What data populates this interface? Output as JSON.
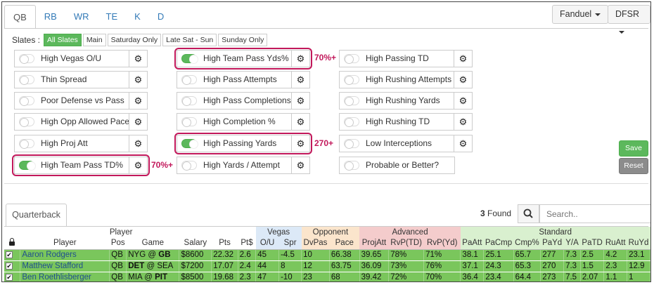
{
  "position_tabs": [
    "QB",
    "RB",
    "WR",
    "TE",
    "K",
    "D"
  ],
  "active_position": "QB",
  "site_dropdown": "Fanduel",
  "source_dropdown": "DFSR",
  "slates": {
    "label": "Slates :",
    "buttons": [
      "All Slates",
      "Main",
      "Saturday Only",
      "Late Sat - Sun",
      "Sunday Only"
    ],
    "active": "All Slates"
  },
  "filters": {
    "col1": [
      {
        "label": "High Vegas O/U",
        "on": false
      },
      {
        "label": "Thin Spread",
        "on": false
      },
      {
        "label": "Poor Defense vs Pass",
        "on": false
      },
      {
        "label": "High Opp Allowed Pace",
        "on": false
      },
      {
        "label": "High Proj Att",
        "on": false
      },
      {
        "label": "High Team Pass TD%",
        "on": true
      }
    ],
    "col2": [
      {
        "label": "High Team Pass Yds%",
        "on": true
      },
      {
        "label": "High Pass Attempts",
        "on": false
      },
      {
        "label": "High Pass Completions",
        "on": false
      },
      {
        "label": "High Completion %",
        "on": false
      },
      {
        "label": "High Passing Yards",
        "on": true
      },
      {
        "label": "High Yards / Attempt",
        "on": false
      }
    ],
    "col3": [
      {
        "label": "High Passing TD",
        "on": false
      },
      {
        "label": "High Rushing Attempts",
        "on": false
      },
      {
        "label": "High Rushing Yards",
        "on": false
      },
      {
        "label": "High Rushing TD",
        "on": false
      },
      {
        "label": "Low Interceptions",
        "on": false
      },
      {
        "label": "Probable or Better?",
        "on": false
      }
    ]
  },
  "annotations": {
    "pass_yds_pct": "70%+",
    "passing_yards": "270+",
    "pass_td_pct": "70%+"
  },
  "buttons": {
    "save": "Save",
    "reset": "Reset"
  },
  "panel_tab": "Quarterback",
  "found": {
    "count": "3",
    "label": "Found"
  },
  "search": {
    "placeholder": "Search.."
  },
  "table": {
    "groups": [
      "Player",
      "Vegas",
      "Opponent",
      "Advanced",
      "Standard"
    ],
    "columns": [
      "Player",
      "Pos",
      "Game",
      "Salary",
      "Pts",
      "Pt$",
      "O/U",
      "Spr",
      "DvPas",
      "Pace",
      "ProjAtt",
      "RvP(TD)",
      "RvP(Yd)",
      "PaAtt",
      "PaCmp",
      "Cmp%",
      "PaYd",
      "Y/A",
      "PaTD",
      "RuAtt",
      "RuYd"
    ],
    "rows": [
      {
        "player": "Aaron Rodgers",
        "pos": "QB",
        "game_a": "NYG @ ",
        "game_b": "GB",
        "salary": "$8600",
        "pts": "22.32",
        "ptd": "2.6",
        "ou": "45",
        "spr": "-4.5",
        "dvpas": "10",
        "pace": "66.38",
        "projatt": "39.65",
        "rvptd": "78%",
        "rvpyd": "71%",
        "paatt": "38.1",
        "pacmp": "25.1",
        "cmp": "65.7",
        "payd": "277",
        "ya": "7.3",
        "patd": "2.5",
        "ruatt": "4.2",
        "ruyd": "23.1"
      },
      {
        "player": "Matthew Stafford",
        "pos": "QB",
        "game_a": "DET",
        "game_b": " @ SEA",
        "salary": "$7200",
        "pts": "17.07",
        "ptd": "2.4",
        "ou": "44",
        "spr": "8",
        "dvpas": "12",
        "pace": "63.75",
        "projatt": "36.09",
        "rvptd": "73%",
        "rvpyd": "76%",
        "paatt": "37.1",
        "pacmp": "24.3",
        "cmp": "65.3",
        "payd": "270",
        "ya": "7.3",
        "patd": "1.5",
        "ruatt": "2.3",
        "ruyd": "12.9"
      },
      {
        "player": "Ben Roethlisberger",
        "pos": "QB",
        "game_a": "MIA @ ",
        "game_b": "PIT",
        "salary": "$8500",
        "pts": "19.68",
        "ptd": "2.3",
        "ou": "47",
        "spr": "-10",
        "dvpas": "23",
        "pace": "68",
        "projatt": "39.42",
        "rvptd": "72%",
        "rvpyd": "70%",
        "paatt": "36.4",
        "pacmp": "23.4",
        "cmp": "64.4",
        "payd": "273",
        "ya": "7.5",
        "patd": "2.07",
        "ruatt": "1.1",
        "ruyd": "1"
      }
    ]
  }
}
